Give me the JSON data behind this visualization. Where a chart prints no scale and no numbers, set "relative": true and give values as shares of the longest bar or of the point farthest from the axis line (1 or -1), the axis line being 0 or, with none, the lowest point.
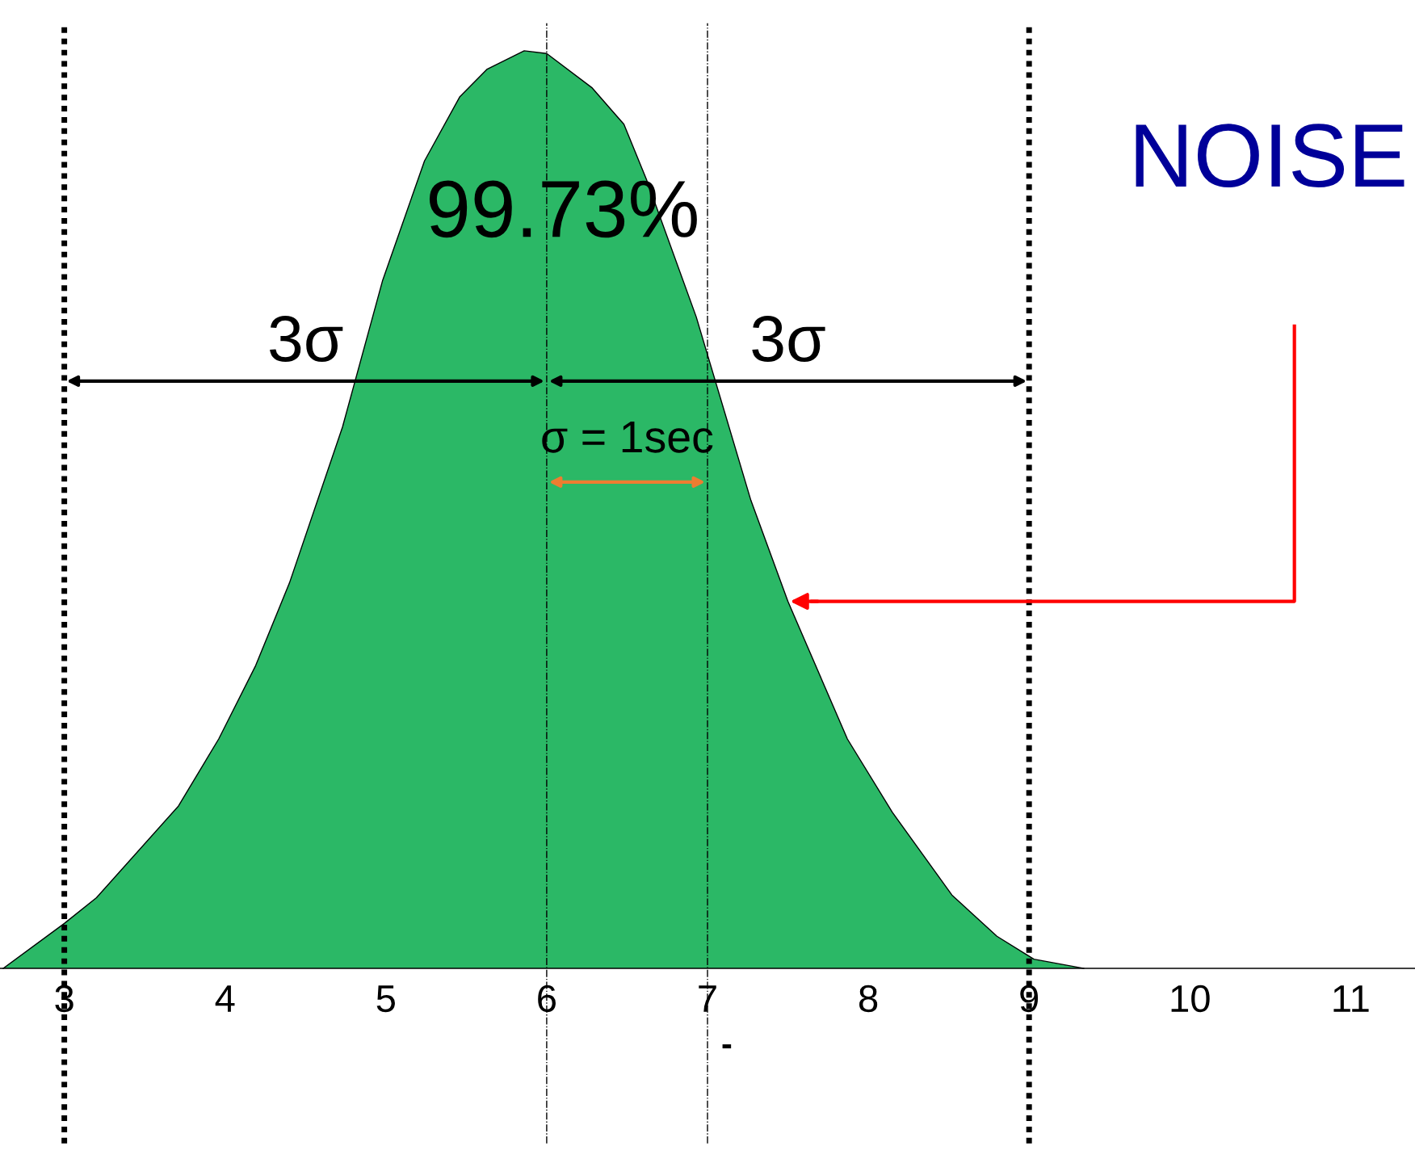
{
  "chart_data": {
    "type": "area",
    "relative": true,
    "x": [
      2.62,
      3.0,
      3.2,
      3.71,
      3.96,
      4.19,
      4.4,
      4.73,
      4.98,
      5.24,
      5.46,
      5.63,
      5.86,
      6.0,
      6.28,
      6.48,
      6.62,
      6.93,
      7.27,
      7.5,
      7.87,
      8.15,
      8.52,
      8.8,
      9.03,
      9.34
    ],
    "values": [
      0,
      0.049,
      0.077,
      0.177,
      0.25,
      0.33,
      0.42,
      0.59,
      0.75,
      0.88,
      0.95,
      0.98,
      1.0,
      0.997,
      0.96,
      0.92,
      0.86,
      0.71,
      0.51,
      0.4,
      0.25,
      0.17,
      0.08,
      0.035,
      0.01,
      0
    ],
    "color": "#2bb866",
    "xlim": [
      2.6,
      11.4
    ],
    "xticks": [
      3,
      4,
      5,
      6,
      7,
      8,
      9,
      10,
      11
    ],
    "tick_labels": "x",
    "grid": false,
    "legend": false,
    "ref_lines": [
      {
        "axis": "x",
        "value": 3,
        "color": "#000000",
        "line_style": "dotted"
      },
      {
        "axis": "x",
        "value": 9,
        "color": "#000000",
        "line_style": "dotted"
      },
      {
        "axis": "x",
        "value": 6,
        "color": "#000000",
        "line_style": "dashdot"
      },
      {
        "axis": "x",
        "value": 7,
        "color": "#000000",
        "line_style": "dashdot"
      }
    ],
    "annotations": [
      "99.73%",
      "3σ",
      "3σ",
      "σ = 1sec",
      "NOISE",
      "-"
    ]
  }
}
